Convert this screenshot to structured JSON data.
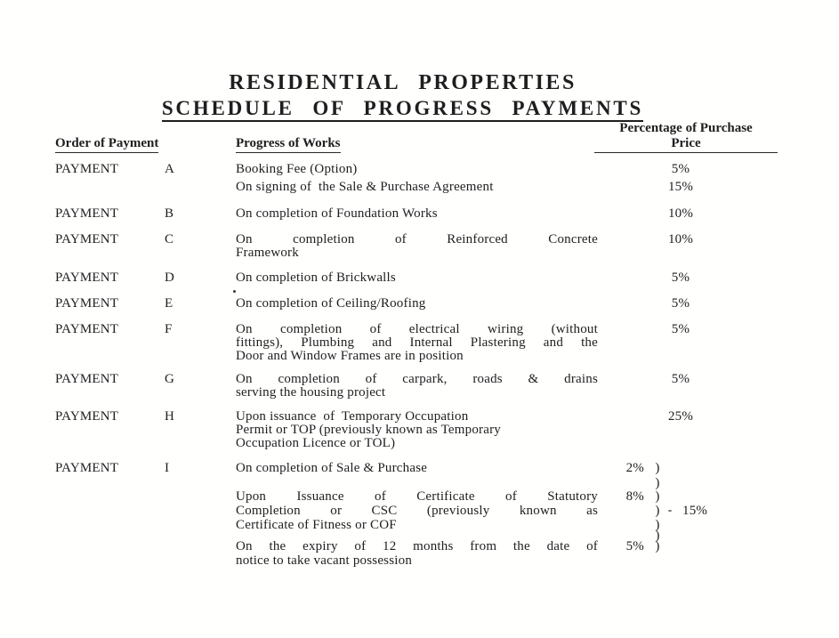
{
  "doc": {
    "title1": "RESIDENTIAL PROPERTIES",
    "title2": "SCHEDULE OF PROGRESS PAYMENTS"
  },
  "columns": {
    "pct_header": "Percentage of Purchase",
    "pct_header_line2": "Price",
    "order_header": "Order of Payment",
    "works_header": "Progress of Works"
  },
  "lines": [
    {
      "order": "PAYMENT",
      "letter": "A",
      "text": "Booking Fee (Option)",
      "pct": "5%",
      "gap": 0
    },
    {
      "text": "On signing of  the Sale & Purchase Agreement",
      "pct": "15%",
      "gap": 5
    },
    {
      "order": "PAYMENT",
      "letter": "B",
      "text": "On completion of Foundation Works",
      "pct": "10%",
      "gap": 15
    },
    {
      "order": "PAYMENT",
      "letter": "C",
      "text": "On completion of Reinforced Concrete",
      "pct": "10%",
      "gap": 14,
      "justify": true
    },
    {
      "text": "Framework",
      "gap": 0
    },
    {
      "order": "PAYMENT",
      "letter": "D",
      "text": "On completion of Brickwalls",
      "pct": "5%",
      "gap": 13
    },
    {
      "order": "PAYMENT",
      "letter": "E",
      "text": "On completion of Ceiling/Roofing",
      "pct": "5%",
      "gap": 14
    },
    {
      "order": "PAYMENT",
      "letter": "F",
      "text": "On completion of electrical wiring (without",
      "pct": "5%",
      "gap": 14,
      "justify": true
    },
    {
      "text": "fittings), Plumbing and Internal Plastering and the",
      "gap": 0,
      "justify": true
    },
    {
      "text": "Door and Window Frames are in position",
      "gap": 0
    },
    {
      "order": "PAYMENT",
      "letter": "G",
      "text": "On completion of carpark, roads & drains",
      "pct": "5%",
      "gap": 11,
      "justify": true
    },
    {
      "text": "serving the housing project",
      "gap": 0
    },
    {
      "order": "PAYMENT",
      "letter": "H",
      "text": "Upon issuance  of  Temporary Occupation",
      "pct": "25%",
      "gap": 12
    },
    {
      "text": "Permit or TOP (previously known as Temporary",
      "gap": 0
    },
    {
      "text": "Occupation Licence or TOL)",
      "gap": 0
    },
    {
      "order": "PAYMENT",
      "letter": "I",
      "text": "On completion of Sale & Purchase",
      "ipct": "2%",
      "br": ")",
      "gap": 13
    },
    {
      "br": ")",
      "gap": 2
    },
    {
      "text": "Upon Issuance of Certificate of Statutory",
      "ipct": "8%",
      "br": ")",
      "gap": 0,
      "justify": true
    },
    {
      "text": "Completion or CSC (previously known as",
      "br": ")",
      "side": "15%",
      "gap": 1,
      "justify": true
    },
    {
      "text": "Certificate of Fitness or COF",
      "br": ")",
      "gap": 1
    },
    {
      "br": ")",
      "gap": -3
    },
    {
      "text": "On the expiry of 12 months from the date of",
      "ipct": "5%",
      "br": ")",
      "gap": -3,
      "justify": true
    },
    {
      "text": "notice to take vacant possession",
      "gap": 1
    }
  ]
}
